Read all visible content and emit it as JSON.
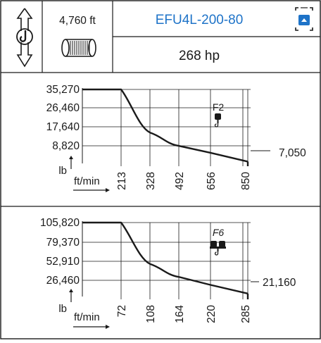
{
  "header": {
    "rope_length": "4,760 ft",
    "model": "EFU4L-200-80",
    "power": "268 hp",
    "accent_color": "#1e73c8",
    "icons": [
      "hoist-hook-rotate-icon",
      "rope-drum-icon",
      "remote-control-icon"
    ]
  },
  "chart_data": [
    {
      "type": "line",
      "panel": "F2",
      "x_axis_unit": "ft/min",
      "y_axis_unit": "lb",
      "x": [
        213,
        328,
        492,
        656,
        850
      ],
      "y_ticks": [
        8820,
        17640,
        26460,
        35270
      ],
      "y_tick_labels": [
        "35,270",
        "26,460",
        "17,640",
        "8,820"
      ],
      "x_tick_labels": [
        "213",
        "328",
        "492",
        "656",
        "850"
      ],
      "series": [
        {
          "values": [
            35270,
            18400,
            13200,
            10500,
            7050
          ]
        }
      ],
      "end_value_label": "7,050",
      "grid": true
    },
    {
      "type": "line",
      "panel": "F6",
      "x_axis_unit": "ft/min",
      "y_axis_unit": "lb",
      "x": [
        72,
        108,
        164,
        220,
        285
      ],
      "y_ticks": [
        26460,
        52910,
        79370,
        105820
      ],
      "y_tick_labels": [
        "105,820",
        "79,370",
        "52,910",
        "26,460"
      ],
      "x_tick_labels": [
        "72",
        "108",
        "164",
        "220",
        "285"
      ],
      "series": [
        {
          "values": [
            105820,
            56500,
            41000,
            31500,
            21160
          ]
        }
      ],
      "end_value_label": "21,160",
      "grid": true
    }
  ]
}
